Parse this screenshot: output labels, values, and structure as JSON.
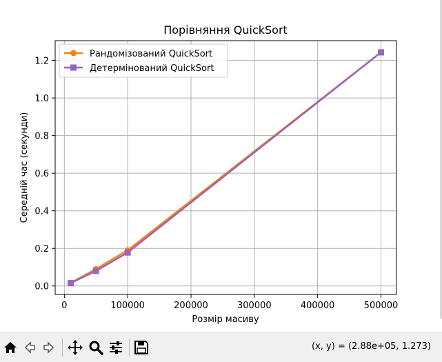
{
  "chart_data": {
    "type": "line",
    "title": "Порівняння QuickSort",
    "xlabel": "Розмір масиву",
    "ylabel": "Середній час (секунди)",
    "x": [
      10000,
      50000,
      100000,
      500000
    ],
    "series": [
      {
        "name": "Рандомізований QuickSort",
        "color": "#ff7f0e",
        "marker": "circle",
        "values": [
          0.017,
          0.09,
          0.19,
          1.243
        ]
      },
      {
        "name": "Детермінований QuickSort",
        "color": "#9467bd",
        "marker": "square",
        "values": [
          0.015,
          0.08,
          0.178,
          1.243
        ]
      }
    ],
    "xlim": [
      -14500,
      524500
    ],
    "ylim": [
      -0.045,
      1.305
    ],
    "xticks": [
      0,
      100000,
      200000,
      300000,
      400000,
      500000
    ],
    "xtick_labels": [
      "0",
      "100000",
      "200000",
      "300000",
      "400000",
      "500000"
    ],
    "yticks": [
      0.0,
      0.2,
      0.4,
      0.6,
      0.8,
      1.0,
      1.2
    ],
    "ytick_labels": [
      "0.0",
      "0.2",
      "0.4",
      "0.6",
      "0.8",
      "1.0",
      "1.2"
    ],
    "grid": true,
    "legend_position": "top-left"
  },
  "toolbar": {
    "icons": [
      "home-icon",
      "back-arrow-icon",
      "forward-arrow-icon",
      "pan-icon",
      "zoom-icon",
      "configure-subplots-icon",
      "save-icon"
    ],
    "coords_text": "(x, y) = (2.88e+05, 1.273)"
  }
}
